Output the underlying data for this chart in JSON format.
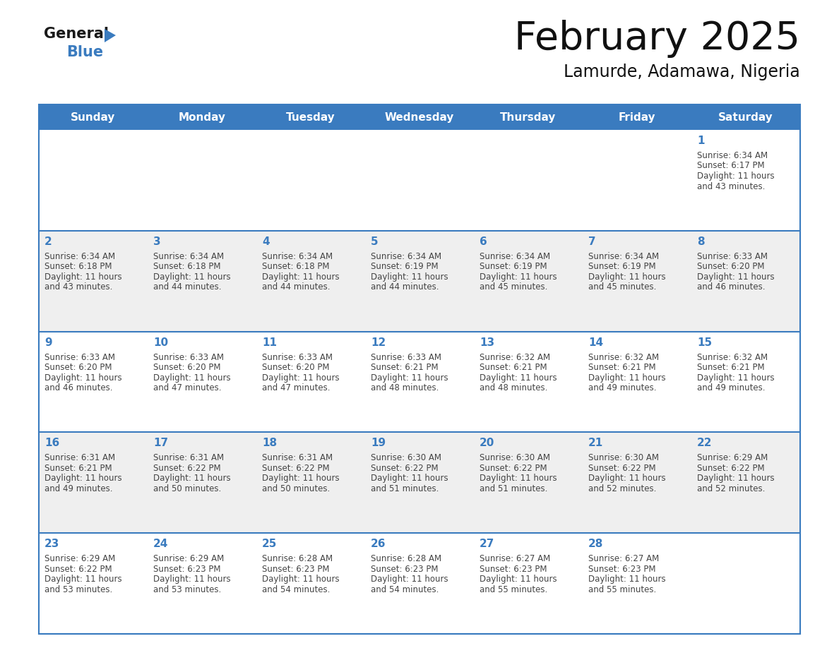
{
  "title": "February 2025",
  "subtitle": "Lamurde, Adamawa, Nigeria",
  "header_color": "#3a7bbf",
  "header_text_color": "#ffffff",
  "day_names": [
    "Sunday",
    "Monday",
    "Tuesday",
    "Wednesday",
    "Thursday",
    "Friday",
    "Saturday"
  ],
  "cell_bg_white": "#ffffff",
  "cell_bg_gray": "#efefef",
  "day_number_color": "#3a7bbf",
  "text_color": "#444444",
  "line_color": "#3a7bbf",
  "calendar": [
    [
      null,
      null,
      null,
      null,
      null,
      null,
      {
        "day": "1",
        "sunrise": "6:34 AM",
        "sunset": "6:17 PM",
        "daylight_h": "11 hours",
        "daylight_m": "43 minutes"
      }
    ],
    [
      {
        "day": "2",
        "sunrise": "6:34 AM",
        "sunset": "6:18 PM",
        "daylight_h": "11 hours",
        "daylight_m": "43 minutes"
      },
      {
        "day": "3",
        "sunrise": "6:34 AM",
        "sunset": "6:18 PM",
        "daylight_h": "11 hours",
        "daylight_m": "44 minutes"
      },
      {
        "day": "4",
        "sunrise": "6:34 AM",
        "sunset": "6:18 PM",
        "daylight_h": "11 hours",
        "daylight_m": "44 minutes"
      },
      {
        "day": "5",
        "sunrise": "6:34 AM",
        "sunset": "6:19 PM",
        "daylight_h": "11 hours",
        "daylight_m": "44 minutes"
      },
      {
        "day": "6",
        "sunrise": "6:34 AM",
        "sunset": "6:19 PM",
        "daylight_h": "11 hours",
        "daylight_m": "45 minutes"
      },
      {
        "day": "7",
        "sunrise": "6:34 AM",
        "sunset": "6:19 PM",
        "daylight_h": "11 hours",
        "daylight_m": "45 minutes"
      },
      {
        "day": "8",
        "sunrise": "6:33 AM",
        "sunset": "6:20 PM",
        "daylight_h": "11 hours",
        "daylight_m": "46 minutes"
      }
    ],
    [
      {
        "day": "9",
        "sunrise": "6:33 AM",
        "sunset": "6:20 PM",
        "daylight_h": "11 hours",
        "daylight_m": "46 minutes"
      },
      {
        "day": "10",
        "sunrise": "6:33 AM",
        "sunset": "6:20 PM",
        "daylight_h": "11 hours",
        "daylight_m": "47 minutes"
      },
      {
        "day": "11",
        "sunrise": "6:33 AM",
        "sunset": "6:20 PM",
        "daylight_h": "11 hours",
        "daylight_m": "47 minutes"
      },
      {
        "day": "12",
        "sunrise": "6:33 AM",
        "sunset": "6:21 PM",
        "daylight_h": "11 hours",
        "daylight_m": "48 minutes"
      },
      {
        "day": "13",
        "sunrise": "6:32 AM",
        "sunset": "6:21 PM",
        "daylight_h": "11 hours",
        "daylight_m": "48 minutes"
      },
      {
        "day": "14",
        "sunrise": "6:32 AM",
        "sunset": "6:21 PM",
        "daylight_h": "11 hours",
        "daylight_m": "49 minutes"
      },
      {
        "day": "15",
        "sunrise": "6:32 AM",
        "sunset": "6:21 PM",
        "daylight_h": "11 hours",
        "daylight_m": "49 minutes"
      }
    ],
    [
      {
        "day": "16",
        "sunrise": "6:31 AM",
        "sunset": "6:21 PM",
        "daylight_h": "11 hours",
        "daylight_m": "49 minutes"
      },
      {
        "day": "17",
        "sunrise": "6:31 AM",
        "sunset": "6:22 PM",
        "daylight_h": "11 hours",
        "daylight_m": "50 minutes"
      },
      {
        "day": "18",
        "sunrise": "6:31 AM",
        "sunset": "6:22 PM",
        "daylight_h": "11 hours",
        "daylight_m": "50 minutes"
      },
      {
        "day": "19",
        "sunrise": "6:30 AM",
        "sunset": "6:22 PM",
        "daylight_h": "11 hours",
        "daylight_m": "51 minutes"
      },
      {
        "day": "20",
        "sunrise": "6:30 AM",
        "sunset": "6:22 PM",
        "daylight_h": "11 hours",
        "daylight_m": "51 minutes"
      },
      {
        "day": "21",
        "sunrise": "6:30 AM",
        "sunset": "6:22 PM",
        "daylight_h": "11 hours",
        "daylight_m": "52 minutes"
      },
      {
        "day": "22",
        "sunrise": "6:29 AM",
        "sunset": "6:22 PM",
        "daylight_h": "11 hours",
        "daylight_m": "52 minutes"
      }
    ],
    [
      {
        "day": "23",
        "sunrise": "6:29 AM",
        "sunset": "6:22 PM",
        "daylight_h": "11 hours",
        "daylight_m": "53 minutes"
      },
      {
        "day": "24",
        "sunrise": "6:29 AM",
        "sunset": "6:23 PM",
        "daylight_h": "11 hours",
        "daylight_m": "53 minutes"
      },
      {
        "day": "25",
        "sunrise": "6:28 AM",
        "sunset": "6:23 PM",
        "daylight_h": "11 hours",
        "daylight_m": "54 minutes"
      },
      {
        "day": "26",
        "sunrise": "6:28 AM",
        "sunset": "6:23 PM",
        "daylight_h": "11 hours",
        "daylight_m": "54 minutes"
      },
      {
        "day": "27",
        "sunrise": "6:27 AM",
        "sunset": "6:23 PM",
        "daylight_h": "11 hours",
        "daylight_m": "55 minutes"
      },
      {
        "day": "28",
        "sunrise": "6:27 AM",
        "sunset": "6:23 PM",
        "daylight_h": "11 hours",
        "daylight_m": "55 minutes"
      },
      null
    ]
  ]
}
